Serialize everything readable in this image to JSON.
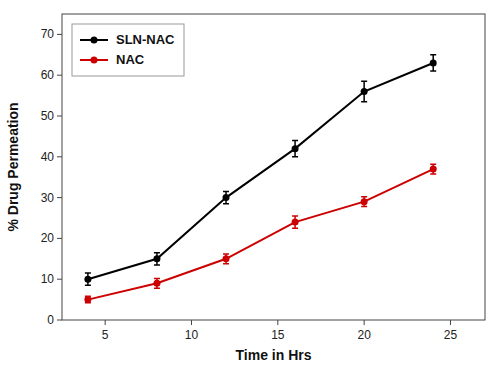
{
  "chart_data": {
    "type": "line",
    "x_label": "Time in Hrs",
    "y_label": "% Drug Permeation",
    "x": [
      4,
      8,
      12,
      16,
      20,
      24
    ],
    "series": [
      {
        "name": "SLN-NAC",
        "color": "#000000",
        "values": [
          10,
          15,
          30,
          42,
          56,
          63
        ],
        "errors": [
          1.5,
          1.5,
          1.5,
          2.0,
          2.5,
          2.0
        ]
      },
      {
        "name": "NAC",
        "color": "#cc0000",
        "values": [
          5,
          9,
          15,
          24,
          29,
          37
        ],
        "errors": [
          0.8,
          1.2,
          1.2,
          1.5,
          1.2,
          1.2
        ]
      }
    ],
    "xlim": [
      2.5,
      27
    ],
    "ylim": [
      0,
      75
    ],
    "xticks": [
      5,
      10,
      15,
      20,
      25
    ],
    "yticks": [
      0,
      10,
      20,
      30,
      40,
      50,
      60,
      70
    ],
    "marker": "circle",
    "grid": false,
    "legend": "upper left"
  }
}
